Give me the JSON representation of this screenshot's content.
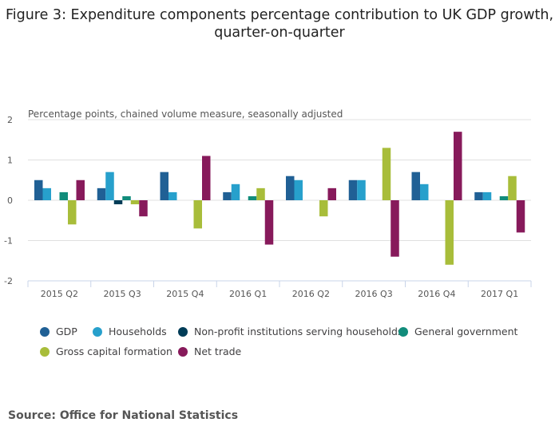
{
  "chart_data": {
    "type": "bar",
    "title": "Figure 3: Expenditure components percentage contribution to UK GDP growth, quarter-on-quarter",
    "ylabel": "Percentage points, chained volume measure, seasonally adjusted",
    "xlabel": "",
    "ylim": [
      -2,
      2
    ],
    "yticks": [
      2,
      1,
      0,
      -1,
      -2
    ],
    "grid": true,
    "legend_position": "bottom",
    "categories": [
      "2015 Q2",
      "2015 Q3",
      "2015 Q4",
      "2016 Q1",
      "2016 Q2",
      "2016 Q3",
      "2016 Q4",
      "2017 Q1"
    ],
    "series": [
      {
        "name": "GDP",
        "color": "#206095",
        "values": [
          0.5,
          0.3,
          0.7,
          0.2,
          0.6,
          0.5,
          0.7,
          0.2
        ]
      },
      {
        "name": "Households",
        "color": "#27a0cc",
        "values": [
          0.3,
          0.7,
          0.2,
          0.4,
          0.5,
          0.5,
          0.4,
          0.2
        ]
      },
      {
        "name": "Non-profit institutions serving households",
        "color": "#003c57",
        "values": [
          0,
          -0.1,
          0,
          0,
          0,
          0,
          0,
          0
        ]
      },
      {
        "name": "General government",
        "color": "#118c7b",
        "values": [
          0.2,
          0.1,
          0,
          0.1,
          0,
          0,
          0,
          0.1
        ]
      },
      {
        "name": "Gross capital formation",
        "color": "#a8bd3a",
        "values": [
          -0.6,
          -0.1,
          -0.7,
          0.3,
          -0.4,
          1.3,
          -1.6,
          0.6
        ]
      },
      {
        "name": "Net trade",
        "color": "#871a5b",
        "values": [
          0.5,
          -0.4,
          1.1,
          -1.1,
          0.3,
          -1.4,
          1.7,
          -0.8
        ]
      }
    ]
  },
  "source": "Source: Office for National Statistics"
}
